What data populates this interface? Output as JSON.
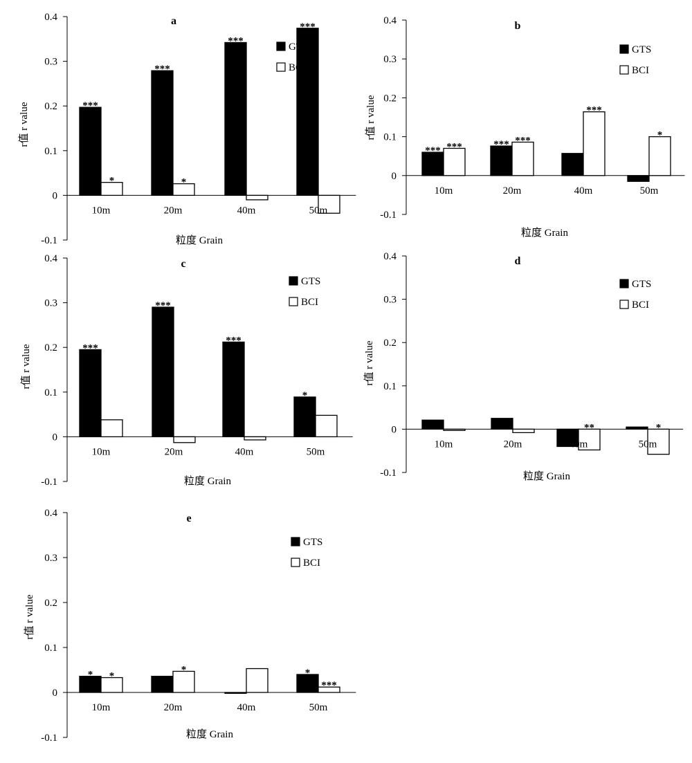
{
  "chart_data": [
    {
      "type": "bar",
      "title": "a",
      "xlabel": "粒度 Grain",
      "ylabel": "r值 r value",
      "ylim": [
        -0.1,
        0.4
      ],
      "yticks": [
        "0.4",
        "0.3",
        "0.2",
        "0.1",
        "0",
        "-0.1"
      ],
      "categories": [
        "10m",
        "20m",
        "40m",
        "50m"
      ],
      "legend_position": "top-right",
      "series": [
        {
          "name": "GTS",
          "values": [
            0.197,
            0.279,
            0.342,
            0.374
          ],
          "significance": [
            "***",
            "***",
            "***",
            "***"
          ]
        },
        {
          "name": "BCI",
          "values": [
            0.029,
            0.026,
            -0.01,
            -0.04
          ],
          "significance": [
            "*",
            "*",
            "",
            ""
          ]
        }
      ]
    },
    {
      "type": "bar",
      "title": "b",
      "xlabel": "粒度 Grain",
      "ylabel": "r值 r value",
      "ylim": [
        -0.1,
        0.4
      ],
      "yticks": [
        "0.4",
        "0.3",
        "0.2",
        "0.1",
        "0",
        "-0.1"
      ],
      "categories": [
        "10m",
        "20m",
        "40m",
        "50m"
      ],
      "legend_position": "top-right",
      "series": [
        {
          "name": "GTS",
          "values": [
            0.06,
            0.076,
            0.057,
            -0.015
          ],
          "significance": [
            "***",
            "***",
            "",
            ""
          ]
        },
        {
          "name": "BCI",
          "values": [
            0.07,
            0.086,
            0.164,
            0.1
          ],
          "significance": [
            "***",
            "***",
            "***",
            "*"
          ]
        }
      ]
    },
    {
      "type": "bar",
      "title": "c",
      "xlabel": "粒度 Grain",
      "ylabel": "r值 r value",
      "ylim": [
        -0.1,
        0.4
      ],
      "yticks": [
        "0.4",
        "0.3",
        "0.2",
        "0.1",
        "0",
        "-0.1"
      ],
      "categories": [
        "10m",
        "20m",
        "40m",
        "50m"
      ],
      "legend_position": "top-right",
      "series": [
        {
          "name": "GTS",
          "values": [
            0.195,
            0.29,
            0.212,
            0.089
          ],
          "significance": [
            "***",
            "***",
            "***",
            "*"
          ]
        },
        {
          "name": "BCI",
          "values": [
            0.038,
            -0.013,
            -0.007,
            0.048
          ],
          "significance": [
            "",
            "",
            "",
            ""
          ]
        }
      ]
    },
    {
      "type": "bar",
      "title": "d",
      "xlabel": "粒度 Grain",
      "ylabel": "r值 r value",
      "ylim": [
        -0.1,
        0.4
      ],
      "yticks": [
        "0.4",
        "0.3",
        "0.2",
        "0.1",
        "0",
        "-0.1"
      ],
      "categories": [
        "10m",
        "20m",
        "40m",
        "50m"
      ],
      "legend_position": "top-right",
      "series": [
        {
          "name": "GTS",
          "values": [
            0.021,
            0.025,
            -0.04,
            0.005
          ],
          "significance": [
            "",
            "",
            "",
            ""
          ]
        },
        {
          "name": "BCI",
          "values": [
            -0.003,
            -0.008,
            -0.048,
            -0.058
          ],
          "significance": [
            "",
            "",
            "**",
            "*"
          ]
        }
      ]
    },
    {
      "type": "bar",
      "title": "e",
      "xlabel": "粒度 Grain",
      "ylabel": "r值 r value",
      "ylim": [
        -0.1,
        0.4
      ],
      "yticks": [
        "0.4",
        "0.3",
        "0.2",
        "0.1",
        "0",
        "-0.1"
      ],
      "categories": [
        "10m",
        "20m",
        "40m",
        "50m"
      ],
      "legend_position": "top-right",
      "series": [
        {
          "name": "GTS",
          "values": [
            0.036,
            0.036,
            -0.002,
            0.04
          ],
          "significance": [
            "*",
            "",
            "",
            "*"
          ]
        },
        {
          "name": "BCI",
          "values": [
            0.033,
            0.047,
            0.053,
            0.012
          ],
          "significance": [
            "*",
            "*",
            "",
            "***"
          ]
        }
      ]
    }
  ],
  "colors": {
    "GTS": "#000000",
    "BCI": "#ffffff",
    "stroke": "#000000"
  }
}
